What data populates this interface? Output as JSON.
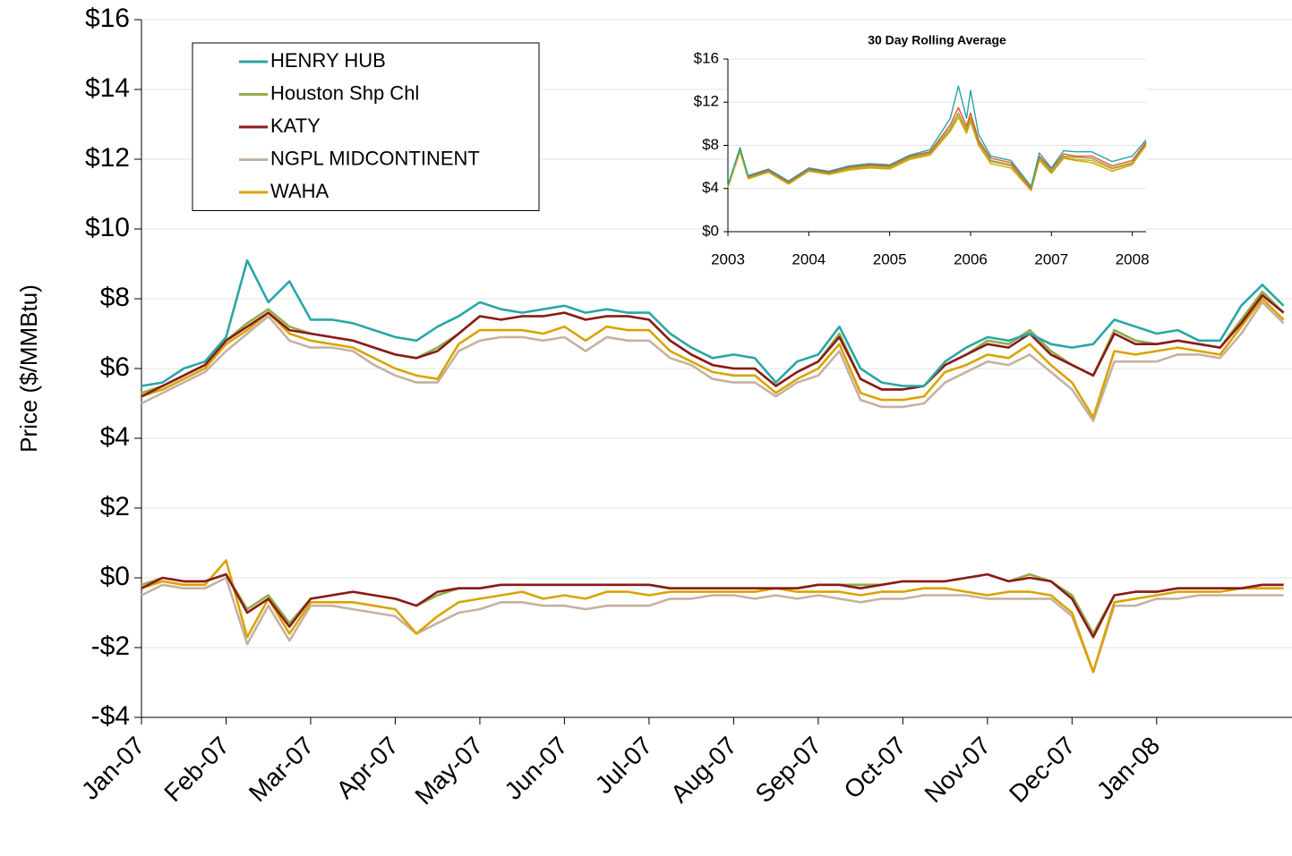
{
  "chart_data": [
    {
      "type": "line",
      "y_label": "Price ($/MMBtu)",
      "x": [
        0,
        0.25,
        0.5,
        0.75,
        1,
        1.25,
        1.5,
        1.75,
        2,
        2.25,
        2.5,
        2.75,
        3,
        3.25,
        3.5,
        3.75,
        4,
        4.25,
        4.5,
        4.75,
        5,
        5.25,
        5.5,
        5.75,
        6,
        6.25,
        6.5,
        6.75,
        7,
        7.25,
        7.5,
        7.75,
        8,
        8.25,
        8.5,
        8.75,
        9,
        9.25,
        9.5,
        9.75,
        10,
        10.25,
        10.5,
        10.75,
        11,
        11.25,
        11.5,
        11.75,
        12,
        12.25,
        12.5,
        12.75,
        13,
        13.25,
        13.5
      ],
      "xlim": [
        0,
        13.6
      ],
      "xticks": [
        {
          "value": 0,
          "label": "Jan-07"
        },
        {
          "value": 1,
          "label": "Feb-07"
        },
        {
          "value": 2,
          "label": "Mar-07"
        },
        {
          "value": 3,
          "label": "Apr-07"
        },
        {
          "value": 4,
          "label": "May-07"
        },
        {
          "value": 5,
          "label": "Jun-07"
        },
        {
          "value": 6,
          "label": "Jul-07"
        },
        {
          "value": 7,
          "label": "Aug-07"
        },
        {
          "value": 8,
          "label": "Sep-07"
        },
        {
          "value": 9,
          "label": "Oct-07"
        },
        {
          "value": 10,
          "label": "Nov-07"
        },
        {
          "value": 11,
          "label": "Dec-07"
        },
        {
          "value": 12,
          "label": "Jan-08"
        }
      ],
      "ylim": [
        -4,
        16
      ],
      "yticks": [
        {
          "value": -4,
          "label": "-$4"
        },
        {
          "value": -2,
          "label": "-$2"
        },
        {
          "value": 0,
          "label": "$0"
        },
        {
          "value": 2,
          "label": "$2"
        },
        {
          "value": 4,
          "label": "$4"
        },
        {
          "value": 6,
          "label": "$6"
        },
        {
          "value": 8,
          "label": "$8"
        },
        {
          "value": 10,
          "label": "$10"
        },
        {
          "value": 12,
          "label": "$12"
        },
        {
          "value": 14,
          "label": "$14"
        },
        {
          "value": 16,
          "label": "$16"
        }
      ],
      "grid": true,
      "legend": "top-left",
      "series": [
        {
          "name": "HENRY HUB",
          "color": "#2aa6a6",
          "values": [
            5.5,
            5.6,
            6.0,
            6.2,
            6.9,
            9.1,
            7.9,
            8.5,
            7.4,
            7.4,
            7.3,
            7.1,
            6.9,
            6.8,
            7.2,
            7.5,
            7.9,
            7.7,
            7.6,
            7.7,
            7.8,
            7.6,
            7.7,
            7.6,
            7.6,
            7.0,
            6.6,
            6.3,
            6.4,
            6.3,
            5.6,
            6.2,
            6.4,
            7.2,
            6.0,
            5.6,
            5.5,
            5.5,
            6.2,
            6.6,
            6.9,
            6.8,
            7.0,
            6.7,
            6.6,
            6.7,
            7.4,
            7.2,
            7.0,
            7.1,
            6.8,
            6.8,
            7.8,
            8.4,
            7.8
          ]
        },
        {
          "name": "Houston Shp Chl",
          "color": "#8fae4a",
          "values": [
            5.3,
            5.5,
            5.8,
            6.1,
            6.8,
            7.3,
            7.7,
            7.2,
            7.0,
            6.9,
            6.8,
            6.6,
            6.4,
            6.3,
            6.6,
            7.0,
            7.5,
            7.4,
            7.5,
            7.5,
            7.6,
            7.4,
            7.5,
            7.5,
            7.4,
            6.8,
            6.4,
            6.1,
            6.0,
            6.0,
            5.5,
            5.9,
            6.2,
            7.0,
            5.7,
            5.4,
            5.4,
            5.5,
            6.1,
            6.4,
            6.8,
            6.7,
            7.1,
            6.5,
            6.1,
            5.8,
            7.1,
            6.8,
            6.7,
            6.8,
            6.7,
            6.6,
            7.4,
            8.2,
            7.6
          ]
        },
        {
          "name": "KATY",
          "color": "#8b1a1a",
          "values": [
            5.2,
            5.5,
            5.8,
            6.1,
            6.8,
            7.2,
            7.6,
            7.1,
            7.0,
            6.9,
            6.8,
            6.6,
            6.4,
            6.3,
            6.5,
            7.0,
            7.5,
            7.4,
            7.5,
            7.5,
            7.6,
            7.4,
            7.5,
            7.5,
            7.4,
            6.8,
            6.4,
            6.1,
            6.0,
            6.0,
            5.5,
            5.9,
            6.2,
            6.9,
            5.7,
            5.4,
            5.4,
            5.5,
            6.1,
            6.4,
            6.7,
            6.6,
            7.0,
            6.4,
            6.1,
            5.8,
            7.0,
            6.7,
            6.7,
            6.8,
            6.7,
            6.6,
            7.3,
            8.1,
            7.6
          ]
        },
        {
          "name": "NGPL MIDCONTINENT",
          "color": "#c4b2a0",
          "values": [
            5.0,
            5.3,
            5.6,
            5.9,
            6.5,
            7.0,
            7.5,
            6.8,
            6.6,
            6.6,
            6.5,
            6.1,
            5.8,
            5.6,
            5.6,
            6.5,
            6.8,
            6.9,
            6.9,
            6.8,
            6.9,
            6.5,
            6.9,
            6.8,
            6.8,
            6.3,
            6.1,
            5.7,
            5.6,
            5.6,
            5.2,
            5.6,
            5.8,
            6.5,
            5.1,
            4.9,
            4.9,
            5.0,
            5.6,
            5.9,
            6.2,
            6.1,
            6.4,
            5.9,
            5.4,
            4.5,
            6.2,
            6.2,
            6.2,
            6.4,
            6.4,
            6.3,
            7.0,
            7.9,
            7.3
          ]
        },
        {
          "name": "WAHA",
          "color": "#d9a300",
          "values": [
            5.2,
            5.4,
            5.7,
            6.0,
            6.7,
            7.1,
            7.6,
            7.0,
            6.8,
            6.7,
            6.6,
            6.3,
            6.0,
            5.8,
            5.7,
            6.7,
            7.1,
            7.1,
            7.1,
            7.0,
            7.2,
            6.8,
            7.2,
            7.1,
            7.1,
            6.5,
            6.2,
            5.9,
            5.8,
            5.8,
            5.3,
            5.7,
            6.0,
            6.7,
            5.3,
            5.1,
            5.1,
            5.2,
            5.9,
            6.1,
            6.4,
            6.3,
            6.7,
            6.1,
            5.6,
            4.6,
            6.5,
            6.4,
            6.5,
            6.6,
            6.5,
            6.4,
            7.2,
            8.0,
            7.4
          ]
        },
        {
          "color": "#8fae4a",
          "values": [
            -0.2,
            0,
            -0.1,
            -0.1,
            0.1,
            -0.9,
            -0.5,
            -1.3,
            -0.6,
            -0.5,
            -0.4,
            -0.5,
            -0.6,
            -0.8,
            -0.5,
            -0.3,
            -0.3,
            -0.2,
            -0.2,
            -0.2,
            -0.2,
            -0.2,
            -0.2,
            -0.2,
            -0.2,
            -0.3,
            -0.3,
            -0.3,
            -0.3,
            -0.3,
            -0.3,
            -0.3,
            -0.2,
            -0.2,
            -0.2,
            -0.2,
            -0.1,
            -0.1,
            -0.1,
            0,
            0.1,
            -0.1,
            0.1,
            -0.1,
            -0.5,
            -1.6,
            -0.5,
            -0.4,
            -0.4,
            -0.3,
            -0.3,
            -0.3,
            -0.3,
            -0.2,
            -0.2
          ]
        },
        {
          "color": "#8b1a1a",
          "values": [
            -0.3,
            0,
            -0.1,
            -0.1,
            0.1,
            -1.0,
            -0.6,
            -1.4,
            -0.6,
            -0.5,
            -0.4,
            -0.5,
            -0.6,
            -0.8,
            -0.4,
            -0.3,
            -0.3,
            -0.2,
            -0.2,
            -0.2,
            -0.2,
            -0.2,
            -0.2,
            -0.2,
            -0.2,
            -0.3,
            -0.3,
            -0.3,
            -0.3,
            -0.3,
            -0.3,
            -0.3,
            -0.2,
            -0.2,
            -0.3,
            -0.2,
            -0.1,
            -0.1,
            -0.1,
            0,
            0.1,
            -0.1,
            0,
            -0.1,
            -0.6,
            -1.7,
            -0.5,
            -0.4,
            -0.4,
            -0.3,
            -0.3,
            -0.3,
            -0.3,
            -0.2,
            -0.2
          ]
        },
        {
          "color": "#c4b2a0",
          "values": [
            -0.5,
            -0.2,
            -0.3,
            -0.3,
            0,
            -1.9,
            -0.8,
            -1.8,
            -0.8,
            -0.8,
            -0.9,
            -1.0,
            -1.1,
            -1.6,
            -1.3,
            -1.0,
            -0.9,
            -0.7,
            -0.7,
            -0.8,
            -0.8,
            -0.9,
            -0.8,
            -0.8,
            -0.8,
            -0.6,
            -0.6,
            -0.5,
            -0.5,
            -0.6,
            -0.5,
            -0.6,
            -0.5,
            -0.6,
            -0.7,
            -0.6,
            -0.6,
            -0.5,
            -0.5,
            -0.5,
            -0.6,
            -0.6,
            -0.6,
            -0.6,
            -1.1,
            -2.7,
            -0.8,
            -0.8,
            -0.6,
            -0.6,
            -0.5,
            -0.5,
            -0.5,
            -0.5,
            -0.5
          ]
        },
        {
          "color": "#d9a300",
          "values": [
            -0.3,
            -0.1,
            -0.2,
            -0.2,
            0.5,
            -1.7,
            -0.6,
            -1.6,
            -0.7,
            -0.7,
            -0.7,
            -0.8,
            -0.9,
            -1.6,
            -1.1,
            -0.7,
            -0.6,
            -0.5,
            -0.4,
            -0.6,
            -0.5,
            -0.6,
            -0.4,
            -0.4,
            -0.5,
            -0.4,
            -0.4,
            -0.4,
            -0.4,
            -0.4,
            -0.3,
            -0.4,
            -0.4,
            -0.4,
            -0.5,
            -0.4,
            -0.4,
            -0.3,
            -0.3,
            -0.4,
            -0.5,
            -0.4,
            -0.4,
            -0.5,
            -1.0,
            -2.7,
            -0.7,
            -0.6,
            -0.5,
            -0.4,
            -0.4,
            -0.4,
            -0.3,
            -0.3,
            -0.3
          ]
        }
      ]
    },
    {
      "type": "line",
      "title": "30 Day Rolling Average",
      "x": [
        2003,
        2003.15,
        2003.25,
        2003.5,
        2003.75,
        2004,
        2004.25,
        2004.5,
        2004.75,
        2005,
        2005.25,
        2005.5,
        2005.75,
        2005.85,
        2005.95,
        2006,
        2006.1,
        2006.25,
        2006.5,
        2006.75,
        2006.85,
        2007,
        2007.15,
        2007.3,
        2007.5,
        2007.75,
        2008,
        2008.17
      ],
      "xlim": [
        2003,
        2008.17
      ],
      "xticks": [
        2003,
        2004,
        2005,
        2006,
        2007,
        2008
      ],
      "ylim": [
        0,
        16
      ],
      "yticks": [
        {
          "value": 0,
          "label": "$0"
        },
        {
          "value": 4,
          "label": "$4"
        },
        {
          "value": 8,
          "label": "$8"
        },
        {
          "value": 12,
          "label": "$12"
        },
        {
          "value": 16,
          "label": "$16"
        }
      ],
      "grid": true,
      "series": [
        {
          "color": "#e8a020",
          "values": [
            4.1,
            7.5,
            5.0,
            5.6,
            4.5,
            5.7,
            5.4,
            5.8,
            6.0,
            5.9,
            6.8,
            7.2,
            9.5,
            10.9,
            9.3,
            10.4,
            8.2,
            6.5,
            6.1,
            3.9,
            6.8,
            5.5,
            6.9,
            6.7,
            6.6,
            5.8,
            6.3,
            8.1
          ]
        },
        {
          "color": "#8aa84a",
          "values": [
            4.2,
            7.6,
            5.0,
            5.6,
            4.5,
            5.7,
            5.4,
            5.9,
            6.1,
            6.0,
            6.9,
            7.3,
            9.6,
            11.0,
            9.5,
            10.6,
            8.3,
            6.6,
            6.2,
            3.9,
            6.9,
            5.6,
            7.0,
            6.9,
            6.8,
            5.9,
            6.4,
            8.2
          ]
        },
        {
          "color": "#e8532a",
          "values": [
            4.2,
            7.7,
            5.1,
            5.7,
            4.6,
            5.8,
            5.5,
            6.0,
            6.2,
            6.1,
            7.0,
            7.4,
            9.9,
            11.5,
            9.8,
            11.0,
            8.5,
            6.8,
            6.4,
            4.0,
            7.0,
            5.8,
            7.2,
            7.0,
            7.0,
            6.1,
            6.6,
            8.3
          ]
        },
        {
          "color": "#c9a800",
          "values": [
            4.1,
            7.4,
            4.9,
            5.5,
            4.4,
            5.6,
            5.3,
            5.7,
            5.9,
            5.8,
            6.7,
            7.1,
            9.3,
            10.6,
            9.1,
            10.2,
            8.0,
            6.3,
            5.9,
            3.8,
            6.6,
            5.4,
            6.8,
            6.6,
            6.4,
            5.6,
            6.2,
            8.0
          ]
        },
        {
          "color": "#2aa3a3",
          "values": [
            4.3,
            7.8,
            5.2,
            5.8,
            4.7,
            5.9,
            5.6,
            6.1,
            6.3,
            6.2,
            7.1,
            7.6,
            10.5,
            13.5,
            10.5,
            13.1,
            9.0,
            7.0,
            6.6,
            4.2,
            7.3,
            5.9,
            7.5,
            7.4,
            7.4,
            6.5,
            7.0,
            8.5
          ]
        }
      ]
    }
  ]
}
